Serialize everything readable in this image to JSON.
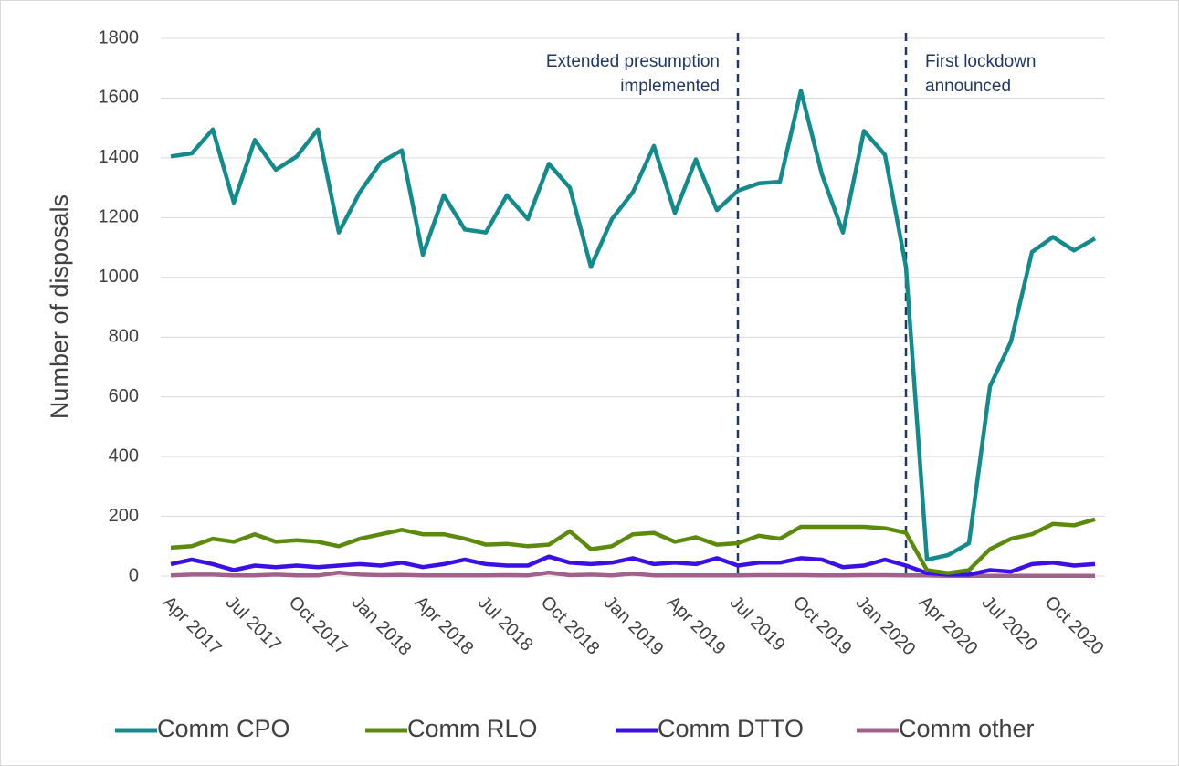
{
  "chart_data": {
    "type": "line",
    "y_label": "Number of disposals",
    "categories": [
      "Apr 2017",
      null,
      null,
      "Jul 2017",
      null,
      null,
      "Oct 2017",
      null,
      null,
      "Jan 2018",
      null,
      null,
      "Apr 2018",
      null,
      null,
      "Jul 2018",
      null,
      null,
      "Oct 2018",
      null,
      null,
      "Jan 2019",
      null,
      null,
      "Apr 2019",
      null,
      null,
      "Jul 2019",
      null,
      null,
      "Oct 2019",
      null,
      null,
      "Jan 2020",
      null,
      null,
      "Apr 2020",
      null,
      null,
      "Jul 2020",
      null,
      null,
      "Oct 2020",
      null,
      null
    ],
    "series": [
      {
        "name": "Comm CPO",
        "color": "#138a8c",
        "values": [
          1405,
          1415,
          1495,
          1250,
          1460,
          1360,
          1405,
          1495,
          1150,
          1285,
          1385,
          1425,
          1075,
          1275,
          1160,
          1150,
          1275,
          1195,
          1380,
          1300,
          1035,
          1195,
          1285,
          1440,
          1215,
          1395,
          1225,
          1290,
          1315,
          1320,
          1625,
          1345,
          1150,
          1490,
          1410,
          1035,
          55,
          70,
          110,
          635,
          785,
          1085,
          1135,
          1090,
          1130
        ]
      },
      {
        "name": "Comm RLO",
        "color": "#5b8a0c",
        "values": [
          95,
          100,
          125,
          115,
          140,
          115,
          120,
          115,
          100,
          125,
          140,
          155,
          140,
          140,
          125,
          105,
          108,
          100,
          105,
          150,
          90,
          100,
          140,
          145,
          115,
          130,
          105,
          110,
          135,
          125,
          165,
          165,
          165,
          165,
          160,
          145,
          20,
          10,
          20,
          90,
          125,
          140,
          175,
          170,
          190
        ]
      },
      {
        "name": "Comm DTTO",
        "color": "#3a10e5",
        "values": [
          40,
          55,
          40,
          20,
          35,
          30,
          35,
          30,
          35,
          40,
          35,
          45,
          30,
          40,
          55,
          40,
          35,
          35,
          65,
          45,
          40,
          45,
          60,
          40,
          45,
          40,
          60,
          35,
          45,
          45,
          60,
          55,
          30,
          35,
          55,
          35,
          10,
          5,
          5,
          20,
          15,
          40,
          45,
          35,
          40
        ]
      },
      {
        "name": "Comm other",
        "color": "#a0628a",
        "values": [
          2,
          5,
          5,
          2,
          2,
          5,
          2,
          2,
          12,
          5,
          3,
          4,
          2,
          2,
          2,
          2,
          3,
          2,
          12,
          3,
          5,
          2,
          8,
          2,
          2,
          2,
          2,
          2,
          3,
          3,
          3,
          2,
          2,
          3,
          3,
          2,
          2,
          1,
          1,
          1,
          1,
          1,
          1,
          1,
          1
        ]
      }
    ],
    "ylim": [
      0,
      1800
    ],
    "yticks": [
      0,
      200,
      400,
      600,
      800,
      1000,
      1200,
      1400,
      1600,
      1800
    ],
    "grid": true,
    "annotations": [
      {
        "text": [
          "Extended presumption",
          "implemented"
        ],
        "at": 27
      },
      {
        "text": [
          "First lockdown",
          "announced"
        ],
        "at": 35
      }
    ],
    "legend": "bottom"
  }
}
